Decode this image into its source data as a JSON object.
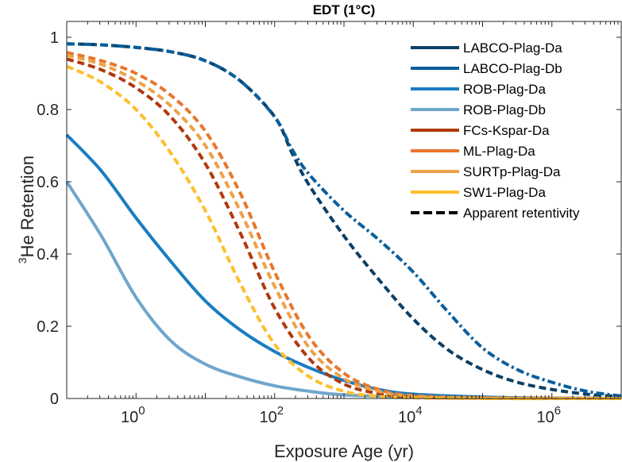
{
  "chart_data": {
    "type": "line",
    "title": "EDT (1°C)",
    "xlabel": "Exposure Age (yr)",
    "ylabel_sup": "3",
    "ylabel": "He Retention",
    "xscale": "log",
    "xlim_log10": [
      -1,
      7
    ],
    "ylim": [
      0,
      1.05
    ],
    "grid": false,
    "legend_position": "top-right",
    "x_ticks": [
      {
        "exp": 0,
        "base": "10",
        "sup": "0"
      },
      {
        "exp": 2,
        "base": "10",
        "sup": "2"
      },
      {
        "exp": 4,
        "base": "10",
        "sup": "4"
      },
      {
        "exp": 6,
        "base": "10",
        "sup": "6"
      }
    ],
    "y_ticks": [
      {
        "value": 0,
        "label": "0"
      },
      {
        "value": 0.2,
        "label": "0.2"
      },
      {
        "value": 0.4,
        "label": "0.4"
      },
      {
        "value": 0.6,
        "label": "0.6"
      },
      {
        "value": 0.8,
        "label": "0.8"
      },
      {
        "value": 1,
        "label": "1"
      }
    ],
    "series": [
      {
        "name": "LABCO-Plag-Da",
        "color": "#0b3f66",
        "style": "dashed",
        "log10_x": [
          -1,
          -0.5,
          0,
          0.5,
          1,
          1.5,
          2,
          2.25,
          2.5,
          3,
          3.5,
          4,
          4.5,
          5,
          5.5,
          6,
          6.5,
          7
        ],
        "y": [
          0.982,
          0.979,
          0.972,
          0.96,
          0.935,
          0.88,
          0.78,
          0.68,
          0.59,
          0.45,
          0.33,
          0.22,
          0.135,
          0.08,
          0.045,
          0.025,
          0.012,
          0.005
        ]
      },
      {
        "name": "LABCO-Plag-Db",
        "color": "#0a5e9c",
        "style": "dashdot",
        "log10_x": [
          -1,
          -0.5,
          0,
          0.5,
          1,
          1.5,
          2,
          2.25,
          2.5,
          3,
          3.5,
          4,
          4.5,
          5,
          5.5,
          6,
          6.5,
          7
        ],
        "y": [
          0.982,
          0.979,
          0.972,
          0.96,
          0.935,
          0.88,
          0.78,
          0.69,
          0.62,
          0.52,
          0.44,
          0.35,
          0.24,
          0.14,
          0.08,
          0.045,
          0.02,
          0.007
        ]
      },
      {
        "name": "ROB-Plag-Da",
        "color": "#1a7dc2",
        "style": "solid",
        "log10_x": [
          -1,
          -0.5,
          0,
          0.5,
          1,
          1.5,
          2,
          2.5,
          3,
          3.5,
          4,
          5,
          6,
          7
        ],
        "y": [
          0.73,
          0.63,
          0.5,
          0.38,
          0.27,
          0.19,
          0.13,
          0.085,
          0.05,
          0.025,
          0.012,
          0.004,
          0.001,
          0.0
        ]
      },
      {
        "name": "ROB-Plag-Db",
        "color": "#6fa6cc",
        "style": "solid",
        "log10_x": [
          -1,
          -0.5,
          0,
          0.5,
          1,
          1.5,
          2,
          2.5,
          3,
          4,
          5,
          7
        ],
        "y": [
          0.6,
          0.45,
          0.28,
          0.16,
          0.095,
          0.06,
          0.035,
          0.02,
          0.01,
          0.004,
          0.001,
          0.0
        ]
      },
      {
        "name": "FCs-Kspar-Da",
        "color": "#b0390d",
        "style": "dashed",
        "log10_x": [
          -1,
          -0.5,
          0,
          0.5,
          1,
          1.5,
          2,
          2.5,
          3,
          3.5,
          4,
          5,
          7
        ],
        "y": [
          0.94,
          0.91,
          0.86,
          0.78,
          0.65,
          0.46,
          0.25,
          0.11,
          0.04,
          0.014,
          0.004,
          0.001,
          0.0
        ]
      },
      {
        "name": "ML-Plag-Da",
        "color": "#e8762b",
        "style": "dashed",
        "log10_x": [
          -1,
          -0.5,
          0,
          0.5,
          1,
          1.5,
          2,
          2.5,
          3,
          3.5,
          4,
          5,
          7
        ],
        "y": [
          0.958,
          0.935,
          0.9,
          0.84,
          0.74,
          0.57,
          0.35,
          0.17,
          0.07,
          0.025,
          0.008,
          0.002,
          0.0
        ]
      },
      {
        "name": "SURTp-Plag-Da",
        "color": "#eea148",
        "style": "dashed",
        "log10_x": [
          -1,
          -0.5,
          0,
          0.5,
          1,
          1.5,
          2,
          2.5,
          3,
          3.5,
          4,
          5,
          7
        ],
        "y": [
          0.95,
          0.925,
          0.88,
          0.81,
          0.7,
          0.52,
          0.31,
          0.14,
          0.055,
          0.02,
          0.006,
          0.001,
          0.0
        ]
      },
      {
        "name": "SW1-Plag-Da",
        "color": "#fdbf2d",
        "style": "dashed",
        "log10_x": [
          -1,
          -0.5,
          0,
          0.5,
          1,
          1.5,
          2,
          2.5,
          3,
          3.5,
          4,
          5,
          7
        ],
        "y": [
          0.92,
          0.875,
          0.8,
          0.68,
          0.52,
          0.32,
          0.15,
          0.06,
          0.02,
          0.006,
          0.002,
          0.0,
          0.0
        ]
      }
    ],
    "legend": [
      {
        "label": "LABCO-Plag-Da",
        "color": "#0b3f66",
        "style": "solid"
      },
      {
        "label": "LABCO-Plag-Db",
        "color": "#0a5e9c",
        "style": "solid"
      },
      {
        "label": "ROB-Plag-Da",
        "color": "#1a7dc2",
        "style": "solid"
      },
      {
        "label": "ROB-Plag-Db",
        "color": "#6fa6cc",
        "style": "solid"
      },
      {
        "label": "FCs-Kspar-Da",
        "color": "#b0390d",
        "style": "solid"
      },
      {
        "label": "ML-Plag-Da",
        "color": "#e8762b",
        "style": "solid"
      },
      {
        "label": "SURTp-Plag-Da",
        "color": "#eea148",
        "style": "solid"
      },
      {
        "label": "SW1-Plag-Da",
        "color": "#fdbf2d",
        "style": "solid"
      },
      {
        "label": "Apparent retentivity",
        "color": "#000000",
        "style": "dashed"
      }
    ]
  }
}
